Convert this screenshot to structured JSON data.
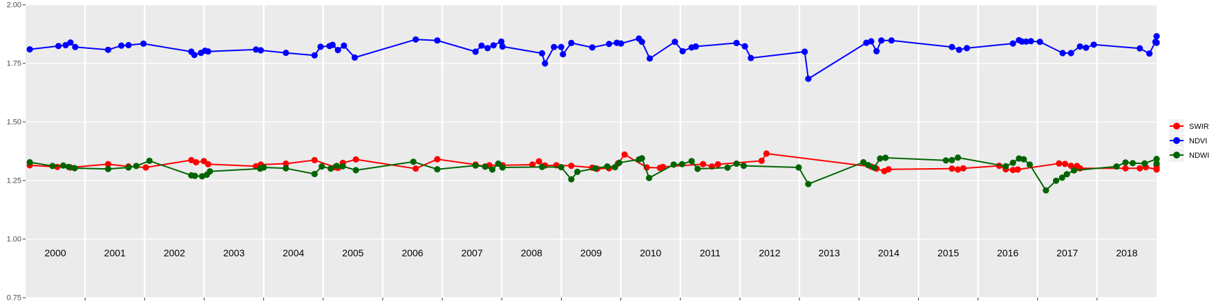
{
  "chart_data": {
    "type": "line",
    "title": "",
    "xlabel": "",
    "ylabel": "",
    "ylim": [
      0.75,
      2.0
    ],
    "yticks": [
      "0.75",
      "1.00",
      "1.25",
      "1.50",
      "1.75",
      "2.00"
    ],
    "xlim": [
      2000.0,
      2018.9
    ],
    "year_labels": [
      "2000",
      "2001",
      "2002",
      "2003",
      "2004",
      "2005",
      "2006",
      "2007",
      "2008",
      "2009",
      "2010",
      "2011",
      "2012",
      "2013",
      "2014",
      "2015",
      "2016",
      "2017",
      "2018"
    ],
    "grid": true,
    "legend_position": "right",
    "series": [
      {
        "name": "SWIR",
        "color": "#ff0000",
        "points": [
          [
            2000.07,
            1.315
          ],
          [
            2000.53,
            1.308
          ],
          [
            2000.75,
            1.306
          ],
          [
            2001.38,
            1.32
          ],
          [
            2001.72,
            1.31
          ],
          [
            2002.01,
            1.306
          ],
          [
            2002.77,
            1.337
          ],
          [
            2002.85,
            1.328
          ],
          [
            2002.98,
            1.333
          ],
          [
            2003.05,
            1.32
          ],
          [
            2003.85,
            1.311
          ],
          [
            2003.93,
            1.318
          ],
          [
            2004.35,
            1.322
          ],
          [
            2004.83,
            1.337
          ],
          [
            2005.17,
            1.307
          ],
          [
            2005.22,
            1.304
          ],
          [
            2005.3,
            1.325
          ],
          [
            2005.52,
            1.34
          ],
          [
            2006.52,
            1.301
          ],
          [
            2006.88,
            1.341
          ],
          [
            2007.52,
            1.318
          ],
          [
            2007.68,
            1.31
          ],
          [
            2007.75,
            1.315
          ],
          [
            2007.97,
            1.315
          ],
          [
            2008.47,
            1.318
          ],
          [
            2008.58,
            1.332
          ],
          [
            2008.68,
            1.314
          ],
          [
            2008.87,
            1.315
          ],
          [
            2009.12,
            1.313
          ],
          [
            2009.47,
            1.305
          ],
          [
            2009.55,
            1.3
          ],
          [
            2009.75,
            1.302
          ],
          [
            2009.9,
            1.323
          ],
          [
            2010.01,
            1.361
          ],
          [
            2010.38,
            1.306
          ],
          [
            2010.6,
            1.304
          ],
          [
            2010.65,
            1.308
          ],
          [
            2011.32,
            1.32
          ],
          [
            2011.47,
            1.31
          ],
          [
            2011.57,
            1.319
          ],
          [
            2012.3,
            1.334
          ],
          [
            2012.38,
            1.365
          ],
          [
            2014.13,
            1.309
          ],
          [
            2014.22,
            1.301
          ],
          [
            2014.35,
            1.29
          ],
          [
            2014.42,
            1.298
          ],
          [
            2015.48,
            1.301
          ],
          [
            2015.58,
            1.297
          ],
          [
            2015.67,
            1.302
          ],
          [
            2016.27,
            1.313
          ],
          [
            2016.38,
            1.298
          ],
          [
            2016.5,
            1.295
          ],
          [
            2016.58,
            1.297
          ],
          [
            2017.27,
            1.323
          ],
          [
            2017.37,
            1.321
          ],
          [
            2017.47,
            1.313
          ],
          [
            2017.57,
            1.312
          ],
          [
            2017.62,
            1.302
          ],
          [
            2018.38,
            1.302
          ],
          [
            2018.62,
            1.302
          ],
          [
            2018.72,
            1.307
          ],
          [
            2018.97,
            1.297
          ],
          [
            2019.23,
            1.315
          ],
          [
            2019.42,
            1.304
          ]
        ]
      },
      {
        "name": "NDVI",
        "color": "#0000ff",
        "points": [
          [
            2000.07,
            1.81
          ],
          [
            2000.55,
            1.824
          ],
          [
            2000.67,
            1.828
          ],
          [
            2000.75,
            1.839
          ],
          [
            2000.83,
            1.82
          ],
          [
            2001.38,
            1.808
          ],
          [
            2001.6,
            1.826
          ],
          [
            2001.72,
            1.828
          ],
          [
            2001.97,
            1.834
          ],
          [
            2002.77,
            1.8
          ],
          [
            2002.82,
            1.786
          ],
          [
            2002.93,
            1.795
          ],
          [
            2003.0,
            1.804
          ],
          [
            2003.05,
            1.801
          ],
          [
            2003.85,
            1.809
          ],
          [
            2003.93,
            1.806
          ],
          [
            2004.35,
            1.795
          ],
          [
            2004.83,
            1.784
          ],
          [
            2004.93,
            1.821
          ],
          [
            2005.08,
            1.824
          ],
          [
            2005.13,
            1.829
          ],
          [
            2005.22,
            1.807
          ],
          [
            2005.32,
            1.826
          ],
          [
            2005.5,
            1.775
          ],
          [
            2006.52,
            1.852
          ],
          [
            2006.88,
            1.848
          ],
          [
            2007.52,
            1.8
          ],
          [
            2007.62,
            1.826
          ],
          [
            2007.72,
            1.815
          ],
          [
            2007.82,
            1.827
          ],
          [
            2007.95,
            1.843
          ],
          [
            2007.97,
            1.822
          ],
          [
            2008.63,
            1.793
          ],
          [
            2008.68,
            1.75
          ],
          [
            2008.83,
            1.82
          ],
          [
            2008.95,
            1.82
          ],
          [
            2008.98,
            1.789
          ],
          [
            2009.12,
            1.837
          ],
          [
            2009.47,
            1.818
          ],
          [
            2009.75,
            1.833
          ],
          [
            2009.88,
            1.838
          ],
          [
            2009.95,
            1.835
          ],
          [
            2010.25,
            1.856
          ],
          [
            2010.3,
            1.842
          ],
          [
            2010.43,
            1.771
          ],
          [
            2010.85,
            1.842
          ],
          [
            2010.98,
            1.802
          ],
          [
            2011.13,
            1.818
          ],
          [
            2011.2,
            1.822
          ],
          [
            2011.88,
            1.837
          ],
          [
            2012.02,
            1.823
          ],
          [
            2012.12,
            1.773
          ],
          [
            2013.02,
            1.8
          ],
          [
            2013.08,
            1.684
          ],
          [
            2014.05,
            1.838
          ],
          [
            2014.13,
            1.844
          ],
          [
            2014.22,
            1.802
          ],
          [
            2014.3,
            1.848
          ],
          [
            2014.47,
            1.848
          ],
          [
            2015.48,
            1.82
          ],
          [
            2015.6,
            1.808
          ],
          [
            2015.73,
            1.815
          ],
          [
            2016.5,
            1.835
          ],
          [
            2016.6,
            1.849
          ],
          [
            2016.65,
            1.843
          ],
          [
            2016.72,
            1.843
          ],
          [
            2016.8,
            1.845
          ],
          [
            2016.95,
            1.842
          ],
          [
            2017.33,
            1.794
          ],
          [
            2017.47,
            1.794
          ],
          [
            2017.62,
            1.822
          ],
          [
            2017.72,
            1.817
          ],
          [
            2017.85,
            1.83
          ],
          [
            2018.62,
            1.814
          ],
          [
            2018.78,
            1.792
          ],
          [
            2018.88,
            1.842
          ],
          [
            2019.08,
            1.866
          ],
          [
            2019.3,
            1.839
          ],
          [
            2019.55,
            1.838
          ]
        ]
      },
      {
        "name": "NDWI",
        "color": "#006400",
        "points": [
          [
            2000.07,
            1.328
          ],
          [
            2000.45,
            1.312
          ],
          [
            2000.63,
            1.314
          ],
          [
            2000.72,
            1.308
          ],
          [
            2000.82,
            1.303
          ],
          [
            2001.38,
            1.299
          ],
          [
            2001.72,
            1.306
          ],
          [
            2001.85,
            1.312
          ],
          [
            2002.07,
            1.334
          ],
          [
            2002.77,
            1.272
          ],
          [
            2002.83,
            1.27
          ],
          [
            2002.95,
            1.268
          ],
          [
            2003.03,
            1.275
          ],
          [
            2003.08,
            1.289
          ],
          [
            2003.92,
            1.301
          ],
          [
            2003.98,
            1.306
          ],
          [
            2004.35,
            1.302
          ],
          [
            2004.83,
            1.278
          ],
          [
            2004.95,
            1.31
          ],
          [
            2005.1,
            1.301
          ],
          [
            2005.2,
            1.312
          ],
          [
            2005.3,
            1.311
          ],
          [
            2005.52,
            1.294
          ],
          [
            2006.48,
            1.33
          ],
          [
            2006.88,
            1.298
          ],
          [
            2007.52,
            1.314
          ],
          [
            2007.68,
            1.309
          ],
          [
            2007.8,
            1.297
          ],
          [
            2007.9,
            1.322
          ],
          [
            2007.97,
            1.306
          ],
          [
            2008.63,
            1.308
          ],
          [
            2008.95,
            1.307
          ],
          [
            2009.12,
            1.255
          ],
          [
            2009.22,
            1.287
          ],
          [
            2009.52,
            1.302
          ],
          [
            2009.72,
            1.31
          ],
          [
            2009.85,
            1.307
          ],
          [
            2009.92,
            1.326
          ],
          [
            2010.25,
            1.34
          ],
          [
            2010.3,
            1.345
          ],
          [
            2010.42,
            1.261
          ],
          [
            2010.83,
            1.318
          ],
          [
            2010.97,
            1.32
          ],
          [
            2011.13,
            1.333
          ],
          [
            2011.23,
            1.3
          ],
          [
            2011.73,
            1.305
          ],
          [
            2011.88,
            1.322
          ],
          [
            2012.0,
            1.313
          ],
          [
            2012.92,
            1.306
          ],
          [
            2013.08,
            1.235
          ],
          [
            2014.0,
            1.328
          ],
          [
            2014.08,
            1.316
          ],
          [
            2014.18,
            1.305
          ],
          [
            2014.28,
            1.344
          ],
          [
            2014.37,
            1.347
          ],
          [
            2015.38,
            1.336
          ],
          [
            2015.48,
            1.337
          ],
          [
            2015.58,
            1.348
          ],
          [
            2016.38,
            1.311
          ],
          [
            2016.5,
            1.326
          ],
          [
            2016.6,
            1.344
          ],
          [
            2016.68,
            1.341
          ],
          [
            2016.78,
            1.318
          ],
          [
            2017.05,
            1.208
          ],
          [
            2017.22,
            1.249
          ],
          [
            2017.32,
            1.262
          ],
          [
            2017.4,
            1.277
          ],
          [
            2017.52,
            1.293
          ],
          [
            2018.23,
            1.31
          ],
          [
            2018.38,
            1.327
          ],
          [
            2018.5,
            1.324
          ],
          [
            2018.7,
            1.323
          ],
          [
            2018.97,
            1.342
          ],
          [
            2019.35,
            1.323
          ]
        ]
      }
    ]
  }
}
